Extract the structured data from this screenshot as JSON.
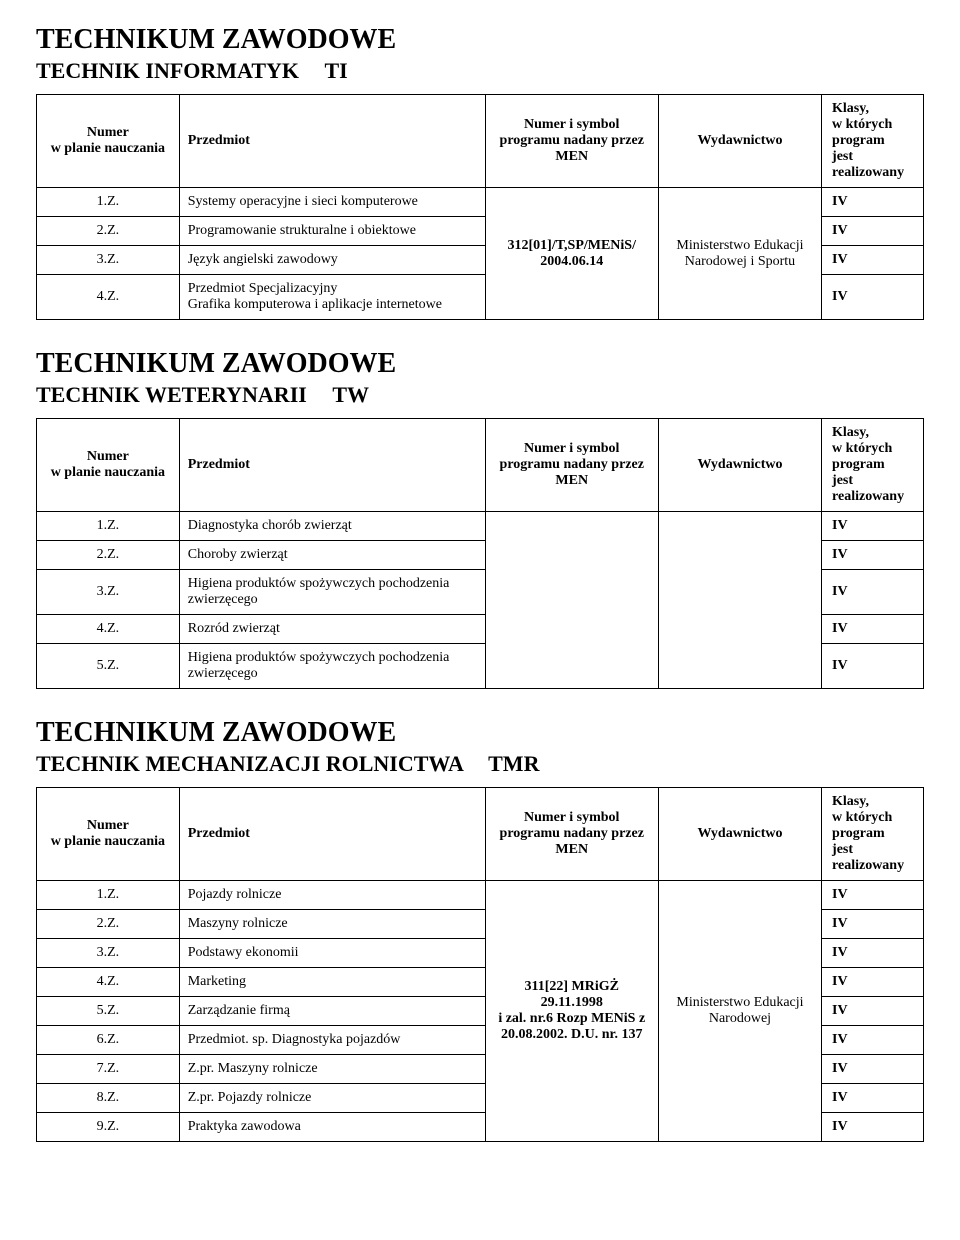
{
  "headers": {
    "num": "Numer\nw planie nauczania",
    "subj": "Przedmiot",
    "prog": "Numer i symbol\nprogramu nadany przez\nMEN",
    "pub": "Wydawnictwo",
    "class": "Klasy,\nw których\nprogram\njest realizowany"
  },
  "section1": {
    "mainTitle": "TECHNIKUM ZAWODOWE",
    "subTitle": "TECHNIK INFORMATYK",
    "abbr": "TI",
    "progCode": "312[01]/T,SP/MENiS/\n2004.06.14",
    "publisher": "Ministerstwo Edukacji Narodowej i Sportu",
    "rows": [
      {
        "num": "1.Z.",
        "subj": "Systemy operacyjne i sieci komputerowe",
        "cls": "IV"
      },
      {
        "num": "2.Z.",
        "subj": "Programowanie strukturalne i obiektowe",
        "cls": "IV"
      },
      {
        "num": "3.Z.",
        "subj": "Język angielski zawodowy",
        "cls": "IV"
      },
      {
        "num": "4.Z.",
        "subj": "Przedmiot Specjalizacyjny\nGrafika komputerowa i aplikacje internetowe",
        "cls": "IV"
      }
    ]
  },
  "section2": {
    "mainTitle": "TECHNIKUM ZAWODOWE",
    "subTitle": "TECHNIK WETERYNARII",
    "abbr": "TW",
    "rows": [
      {
        "num": "1.Z.",
        "subj": "Diagnostyka chorób zwierząt",
        "cls": "IV"
      },
      {
        "num": "2.Z.",
        "subj": "Choroby zwierząt",
        "cls": "IV"
      },
      {
        "num": "3.Z.",
        "subj": "Higiena produktów spożywczych pochodzenia zwierzęcego",
        "cls": "IV"
      },
      {
        "num": "4.Z.",
        "subj": "Rozród zwierząt",
        "cls": "IV"
      },
      {
        "num": "5.Z.",
        "subj": "Higiena produktów spożywczych pochodzenia zwierzęcego",
        "cls": "IV"
      }
    ]
  },
  "section3": {
    "mainTitle": "TECHNIKUM ZAWODOWE",
    "subTitle": "TECHNIK MECHANIZACJI ROLNICTWA",
    "abbr": "TMR",
    "progCode": "311[22] MRiGŻ\n29.11.1998\ni zal. nr.6 Rozp MENiS z\n20.08.2002. D.U. nr. 137",
    "publisher": "Ministerstwo Edukacji Narodowej",
    "rows": [
      {
        "num": "1.Z.",
        "subj": "Pojazdy rolnicze",
        "cls": "IV"
      },
      {
        "num": "2.Z.",
        "subj": "Maszyny rolnicze",
        "cls": "IV"
      },
      {
        "num": "3.Z.",
        "subj": "Podstawy ekonomii",
        "cls": "IV"
      },
      {
        "num": "4.Z.",
        "subj": "Marketing",
        "cls": "IV"
      },
      {
        "num": "5.Z.",
        "subj": "Zarządzanie firmą",
        "cls": "IV"
      },
      {
        "num": "6.Z.",
        "subj": "Przedmiot. sp. Diagnostyka pojazdów",
        "cls": "IV"
      },
      {
        "num": "7.Z.",
        "subj": "Z.pr. Maszyny rolnicze",
        "cls": "IV"
      },
      {
        "num": "8.Z.",
        "subj": "Z.pr. Pojazdy rolnicze",
        "cls": "IV"
      },
      {
        "num": "9.Z.",
        "subj": "Praktyka zawodowa",
        "cls": "IV"
      }
    ]
  }
}
